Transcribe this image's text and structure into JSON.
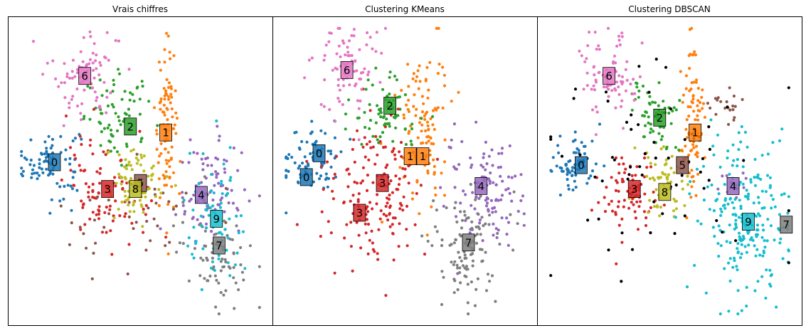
{
  "figure": {
    "panels": [
      {
        "title": "Vrais chiffres"
      },
      {
        "title": "Clustering KMeans"
      },
      {
        "title": "Clustering DBSCAN"
      }
    ]
  },
  "colors": {
    "palette": [
      "#1f77b4",
      "#ff7f0e",
      "#2ca02c",
      "#d62728",
      "#9467bd",
      "#8c564b",
      "#e377c2",
      "#7f7f7f",
      "#bcbd22",
      "#17becf"
    ],
    "noise": "#000000"
  },
  "chart_data": [
    {
      "type": "scatter",
      "title": "Vrais chiffres",
      "xlim": [
        0,
        100
      ],
      "ylim": [
        0,
        100
      ],
      "grid": false,
      "axes_ticks": false,
      "cluster_labels": [
        {
          "label": "0",
          "color": "#1f77b4",
          "x": 16,
          "y": 53
        },
        {
          "label": "1",
          "color": "#ff7f0e",
          "x": 60,
          "y": 63
        },
        {
          "label": "2",
          "color": "#2ca02c",
          "x": 46,
          "y": 65
        },
        {
          "label": "3",
          "color": "#d62728",
          "x": 37,
          "y": 44
        },
        {
          "label": "4",
          "color": "#9467bd",
          "x": 74,
          "y": 42
        },
        {
          "label": "5",
          "color": "#8c564b",
          "x": 50,
          "y": 46
        },
        {
          "label": "6",
          "color": "#e377c2",
          "x": 28,
          "y": 82
        },
        {
          "label": "7",
          "color": "#7f7f7f",
          "x": 81,
          "y": 25
        },
        {
          "label": "8",
          "color": "#bcbd22",
          "x": 48,
          "y": 44
        },
        {
          "label": "9",
          "color": "#17becf",
          "x": 80,
          "y": 34
        }
      ],
      "clusters": [
        {
          "label": "0",
          "color": "#1f77b4",
          "center": [
            14,
            53
          ],
          "spread": [
            6,
            6
          ],
          "n": 80
        },
        {
          "label": "1",
          "color": "#ff7f0e",
          "center": [
            60,
            65
          ],
          "spread": [
            2.2,
            14
          ],
          "n": 90
        },
        {
          "label": "2",
          "color": "#2ca02c",
          "center": [
            42,
            68
          ],
          "spread": [
            7,
            7
          ],
          "n": 70
        },
        {
          "label": "3",
          "color": "#d62728",
          "center": [
            36,
            44
          ],
          "spread": [
            8,
            9
          ],
          "n": 90
        },
        {
          "label": "4",
          "color": "#9467bd",
          "center": [
            78,
            42
          ],
          "spread": [
            7,
            9
          ],
          "n": 90
        },
        {
          "label": "5",
          "color": "#8c564b",
          "center": [
            46,
            34
          ],
          "spread": [
            14,
            9
          ],
          "n": 40
        },
        {
          "label": "6",
          "color": "#e377c2",
          "center": [
            28,
            83
          ],
          "spread": [
            7,
            8
          ],
          "n": 80
        },
        {
          "label": "7",
          "color": "#7f7f7f",
          "center": [
            80,
            23
          ],
          "spread": [
            8,
            9
          ],
          "n": 70
        },
        {
          "label": "8",
          "color": "#bcbd22",
          "center": [
            48,
            46
          ],
          "spread": [
            6,
            7
          ],
          "n": 70
        },
        {
          "label": "9",
          "color": "#17becf",
          "center": [
            80,
            32
          ],
          "spread": [
            6,
            11
          ],
          "n": 70
        }
      ]
    },
    {
      "type": "scatter",
      "title": "Clustering KMeans",
      "xlim": [
        0,
        100
      ],
      "ylim": [
        0,
        100
      ],
      "grid": false,
      "axes_ticks": false,
      "cluster_labels": [
        {
          "label": "0",
          "color": "#1f77b4",
          "x": 16,
          "y": 56
        },
        {
          "label": "0",
          "color": "#1f77b4",
          "x": 11,
          "y": 48
        },
        {
          "label": "1",
          "color": "#ff7f0e",
          "x": 52,
          "y": 55
        },
        {
          "label": "1",
          "color": "#ff7f0e",
          "x": 57,
          "y": 55
        },
        {
          "label": "2",
          "color": "#2ca02c",
          "x": 44,
          "y": 72
        },
        {
          "label": "3",
          "color": "#d62728",
          "x": 41,
          "y": 46
        },
        {
          "label": "3",
          "color": "#d62728",
          "x": 32,
          "y": 36
        },
        {
          "label": "4",
          "color": "#9467bd",
          "x": 80,
          "y": 45
        },
        {
          "label": "6",
          "color": "#e377c2",
          "x": 27,
          "y": 84
        },
        {
          "label": "7",
          "color": "#7f7f7f",
          "x": 75,
          "y": 26
        }
      ],
      "clusters": [
        {
          "label": "0",
          "color": "#1f77b4",
          "center": [
            13,
            54
          ],
          "spread": [
            6,
            6
          ],
          "n": 80
        },
        {
          "label": "1",
          "color": "#ff7f0e",
          "center": [
            57,
            65
          ],
          "spread": [
            5,
            14
          ],
          "n": 110
        },
        {
          "label": "2",
          "color": "#2ca02c",
          "center": [
            42,
            70
          ],
          "spread": [
            7,
            7
          ],
          "n": 70
        },
        {
          "label": "3",
          "color": "#d62728",
          "center": [
            38,
            43
          ],
          "spread": [
            10,
            11
          ],
          "n": 160
        },
        {
          "label": "4",
          "color": "#9467bd",
          "center": [
            80,
            44
          ],
          "spread": [
            8,
            9
          ],
          "n": 110
        },
        {
          "label": "6",
          "color": "#e377c2",
          "center": [
            27,
            84
          ],
          "spread": [
            7,
            8
          ],
          "n": 80
        },
        {
          "label": "7",
          "color": "#7f7f7f",
          "center": [
            74,
            24
          ],
          "spread": [
            7,
            9
          ],
          "n": 110
        }
      ]
    },
    {
      "type": "scatter",
      "title": "Clustering DBSCAN",
      "xlim": [
        0,
        100
      ],
      "ylim": [
        0,
        100
      ],
      "grid": false,
      "axes_ticks": false,
      "noise_color": "#000000",
      "cluster_labels": [
        {
          "label": "0",
          "color": "#1f77b4",
          "x": 15,
          "y": 52
        },
        {
          "label": "1",
          "color": "#ff7f0e",
          "x": 60,
          "y": 63
        },
        {
          "label": "2",
          "color": "#2ca02c",
          "x": 46,
          "y": 68
        },
        {
          "label": "3",
          "color": "#d62728",
          "x": 36,
          "y": 44
        },
        {
          "label": "4",
          "color": "#9467bd",
          "x": 75,
          "y": 45
        },
        {
          "label": "5",
          "color": "#8c564b",
          "x": 55,
          "y": 52
        },
        {
          "label": "6",
          "color": "#e377c2",
          "x": 26,
          "y": 82
        },
        {
          "label": "7",
          "color": "#7f7f7f",
          "x": 96,
          "y": 32
        },
        {
          "label": "8",
          "color": "#bcbd22",
          "x": 48,
          "y": 43
        },
        {
          "label": "9",
          "color": "#17becf",
          "x": 81,
          "y": 33
        }
      ],
      "clusters": [
        {
          "label": "0",
          "color": "#1f77b4",
          "center": [
            13,
            53
          ],
          "spread": [
            5,
            5
          ],
          "n": 70
        },
        {
          "label": "1",
          "color": "#ff7f0e",
          "center": [
            59,
            65
          ],
          "spread": [
            2.2,
            14
          ],
          "n": 90
        },
        {
          "label": "2",
          "color": "#2ca02c",
          "center": [
            44,
            68
          ],
          "spread": [
            5,
            6
          ],
          "n": 60
        },
        {
          "label": "3",
          "color": "#d62728",
          "center": [
            35,
            42
          ],
          "spread": [
            6,
            7
          ],
          "n": 80
        },
        {
          "label": "4",
          "color": "#9467bd",
          "center": [
            74,
            46
          ],
          "spread": [
            3,
            3
          ],
          "n": 12
        },
        {
          "label": "5",
          "color": "#8c564b",
          "center": [
            72,
            72
          ],
          "spread": [
            3,
            3
          ],
          "n": 20
        },
        {
          "label": "6",
          "color": "#e377c2",
          "center": [
            26,
            82
          ],
          "spread": [
            6,
            8
          ],
          "n": 80
        },
        {
          "label": "8",
          "color": "#bcbd22",
          "center": [
            47,
            46
          ],
          "spread": [
            5,
            6
          ],
          "n": 60
        },
        {
          "label": "9",
          "color": "#17becf",
          "center": [
            78,
            34
          ],
          "spread": [
            9,
            13
          ],
          "n": 220
        },
        {
          "label": "noise",
          "color": "#000000",
          "center": [
            50,
            50
          ],
          "spread": [
            24,
            20
          ],
          "n": 70
        }
      ]
    }
  ]
}
